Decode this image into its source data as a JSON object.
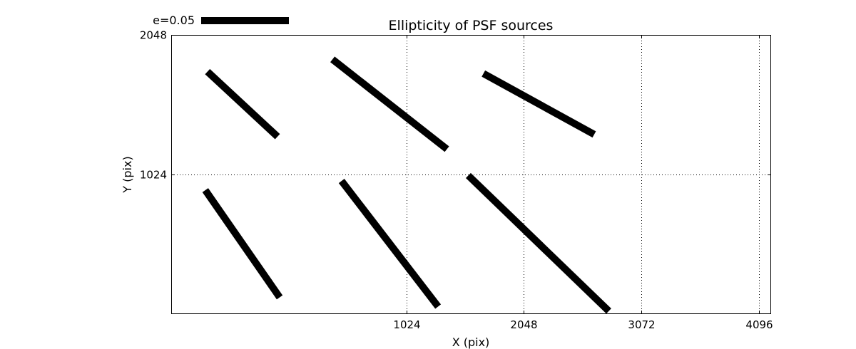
{
  "chart_data": {
    "type": "quiver",
    "title": "Ellipticity of PSF sources",
    "xlabel": "X (pix)",
    "ylabel": "Y (pix)",
    "xlim": [
      -1024,
      4196
    ],
    "ylim": [
      0,
      2048
    ],
    "grid": true,
    "x_ticks": [
      1024,
      2048,
      3072,
      4096
    ],
    "x_tick_labels": [
      "1024",
      "2048",
      "3072",
      "4096"
    ],
    "y_ticks": [
      1024,
      2048
    ],
    "y_tick_labels": [
      "1024",
      "2048"
    ],
    "key": {
      "label": "e=0.05",
      "value": 0.05,
      "placement": "top-left"
    },
    "color": "#000000",
    "segments": [
      {
        "x0": -708,
        "y0": 1778,
        "x1": -98,
        "y1": 1300
      },
      {
        "x0": 381,
        "y0": 1868,
        "x1": 1378,
        "y1": 1208
      },
      {
        "x0": 1696,
        "y0": 1764,
        "x1": 2661,
        "y1": 1316
      },
      {
        "x0": -727,
        "y0": 906,
        "x1": -79,
        "y1": 118
      },
      {
        "x0": 460,
        "y0": 974,
        "x1": 1301,
        "y1": 50
      },
      {
        "x0": 1564,
        "y0": 1014,
        "x1": 2788,
        "y1": 17
      }
    ]
  }
}
